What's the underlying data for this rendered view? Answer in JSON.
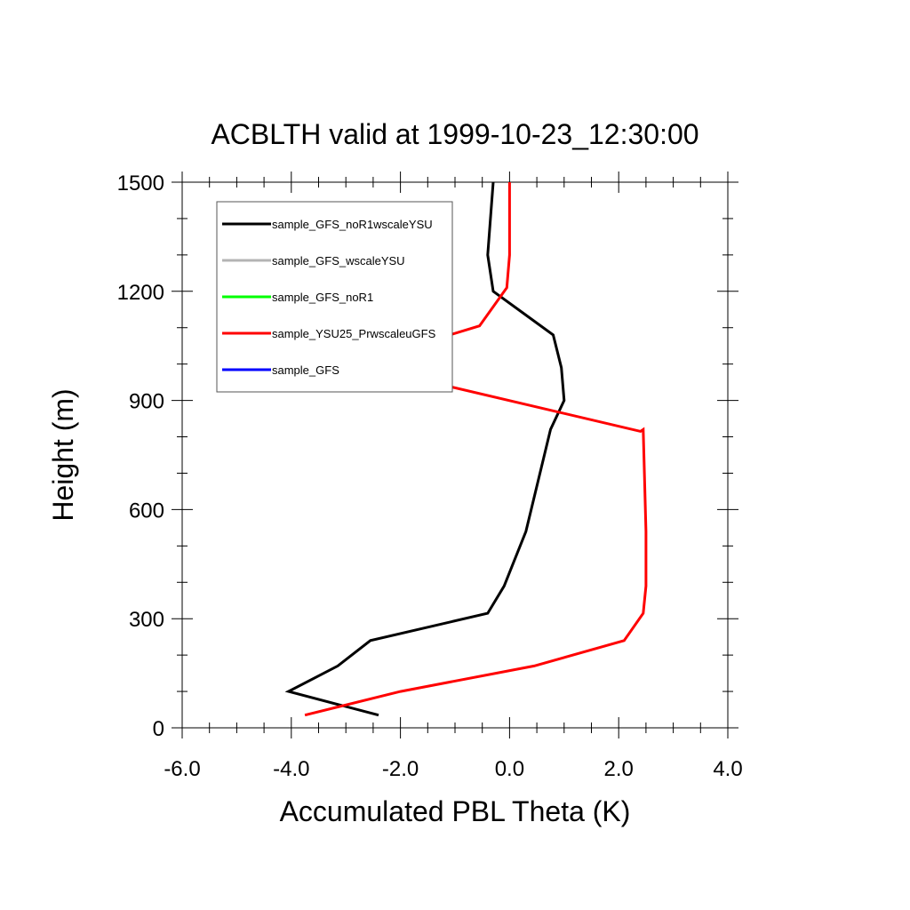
{
  "chart_data": {
    "type": "line",
    "title": "ACBLTH valid at 1999-10-23_12:30:00",
    "xlabel": "Accumulated PBL Theta (K)",
    "ylabel": "Height (m)",
    "xlim": [
      -6.0,
      4.0
    ],
    "ylim": [
      0,
      1500
    ],
    "xticks": [
      "-6.0",
      "-4.0",
      "-2.0",
      "0.0",
      "2.0",
      "4.0"
    ],
    "xtick_values": [
      -6.0,
      -4.0,
      -2.0,
      0.0,
      2.0,
      4.0
    ],
    "yticks": [
      "0",
      "300",
      "600",
      "900",
      "1200",
      "1500"
    ],
    "ytick_values": [
      0,
      300,
      600,
      900,
      1200,
      1500
    ],
    "grid": false,
    "legend_position": "top-left",
    "series": [
      {
        "name": "sample_GFS_noR1wscaleYSU",
        "color": "#000000",
        "x": [
          -2.4,
          -4.05,
          -3.15,
          -2.55,
          -0.4,
          -0.1,
          0.3,
          0.75,
          1.0,
          0.95,
          0.8,
          0.25,
          -0.3,
          -0.4,
          -0.35,
          -0.3
        ],
        "y": [
          35,
          100,
          170,
          240,
          315,
          390,
          540,
          820,
          900,
          990,
          1080,
          1140,
          1200,
          1300,
          1400,
          1500
        ]
      },
      {
        "name": "sample_GFS_wscaleYSU",
        "color": "#b4b4b4",
        "x": [],
        "y": []
      },
      {
        "name": "sample_GFS_noR1",
        "color": "#00ff00",
        "x": [],
        "y": []
      },
      {
        "name": "sample_YSU25_PrwscaleuGFS",
        "color": "#ff0000",
        "x": [
          -3.75,
          -2.0,
          0.45,
          2.1,
          2.45,
          2.5,
          2.5,
          2.45,
          2.4,
          -2.85,
          -0.55,
          -0.05,
          0.0,
          0.0
        ],
        "y": [
          35,
          100,
          170,
          240,
          315,
          390,
          540,
          820,
          815,
          1000,
          1105,
          1210,
          1300,
          1500
        ]
      },
      {
        "name": "sample_GFS",
        "color": "#0000ff",
        "x": [],
        "y": []
      }
    ]
  }
}
